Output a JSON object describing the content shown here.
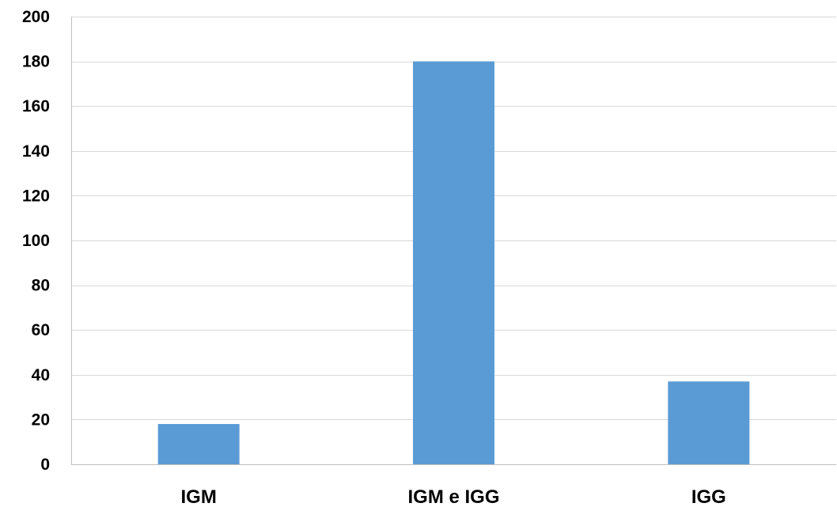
{
  "chart_data": {
    "type": "bar",
    "categories": [
      "IGM",
      "IGM e IGG",
      "IGG"
    ],
    "values": [
      18,
      180,
      37
    ],
    "ylim": [
      0,
      200
    ],
    "yticks": [
      0,
      20,
      40,
      60,
      80,
      100,
      120,
      140,
      160,
      180,
      200
    ],
    "title": "",
    "xlabel": "",
    "ylabel": "",
    "grid": true,
    "legend": "none",
    "colors": {
      "bar": "#5b9bd5",
      "grid": "#d9d9d9",
      "axis": "#bfbfbf",
      "text": "#000000"
    }
  }
}
